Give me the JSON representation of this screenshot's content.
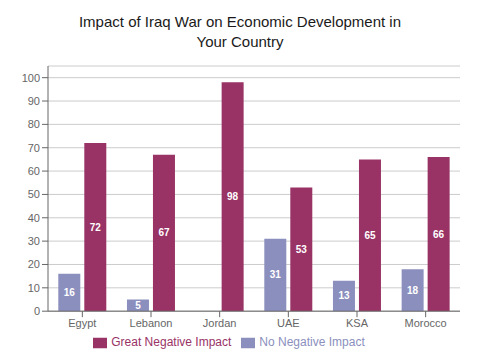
{
  "chart_data": {
    "type": "bar",
    "title": "Impact of Iraq War on Economic Development in\nYour Country",
    "categories": [
      "Egypt",
      "Lebanon",
      "Jordan",
      "UAE",
      "KSA",
      "Morocco"
    ],
    "series": [
      {
        "name": "No Negative Impact",
        "color": "#8b8fbe",
        "values": [
          16,
          5,
          0,
          31,
          13,
          18
        ],
        "value_labels": [
          "16",
          "5",
          null,
          "31",
          "13",
          "18"
        ]
      },
      {
        "name": "Great Negative Impact",
        "color": "#993366",
        "values": [
          72,
          67,
          98,
          53,
          65,
          66
        ]
      }
    ],
    "ylim": [
      0,
      105
    ],
    "yticks": [
      0,
      10,
      20,
      30,
      40,
      50,
      60,
      70,
      80,
      90,
      100
    ],
    "grid": true,
    "legend": "bottom",
    "data_labels": true
  }
}
